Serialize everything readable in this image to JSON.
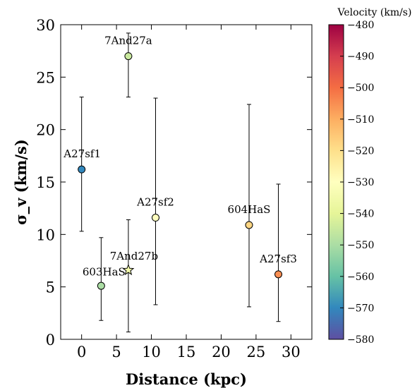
{
  "chart_data": {
    "type": "scatter",
    "xlabel": "Distance (kpc)",
    "ylabel": "σ_v (km/s)",
    "xlim": [
      -3,
      33
    ],
    "ylim": [
      0,
      30
    ],
    "xticks": [
      0,
      5,
      10,
      15,
      20,
      25,
      30
    ],
    "yticks": [
      0,
      5,
      10,
      15,
      20,
      25,
      30
    ],
    "grid": false,
    "points": [
      {
        "label": "A27sf1",
        "x": 0.0,
        "y": 16.2,
        "yerr_low": 10.3,
        "yerr_high": 23.1,
        "velocity": -570,
        "marker": "circle"
      },
      {
        "label": "7And27a",
        "x": 6.7,
        "y": 27.0,
        "yerr_low": 23.1,
        "yerr_high": 29.2,
        "velocity": -545,
        "marker": "circle"
      },
      {
        "label": "603HaS",
        "x": 2.8,
        "y": 5.1,
        "yerr_low": 1.8,
        "yerr_high": 9.7,
        "velocity": -550,
        "marker": "circle"
      },
      {
        "label": "7And27b",
        "x": 6.7,
        "y": 6.6,
        "yerr_low": 0.7,
        "yerr_high": 11.4,
        "velocity": -535,
        "marker": "star"
      },
      {
        "label": "A27sf2",
        "x": 10.6,
        "y": 11.6,
        "yerr_low": 3.3,
        "yerr_high": 23.0,
        "velocity": -530,
        "marker": "circle"
      },
      {
        "label": "604HaS",
        "x": 24.0,
        "y": 10.9,
        "yerr_low": 3.1,
        "yerr_high": 22.4,
        "velocity": -518,
        "marker": "circle"
      },
      {
        "label": "A27sf3",
        "x": 28.2,
        "y": 6.2,
        "yerr_low": 1.7,
        "yerr_high": 14.8,
        "velocity": -505,
        "marker": "circle"
      }
    ],
    "colorbar": {
      "title": "Velocity (km/s)",
      "min": -580,
      "max": -480,
      "ticks": [
        -480,
        -490,
        -500,
        -510,
        -520,
        -530,
        -540,
        -550,
        -560,
        -570,
        -580
      ],
      "colormap": [
        "#5e4fa2",
        "#3288bd",
        "#66c2a5",
        "#abdda4",
        "#e6f598",
        "#ffffbf",
        "#fee08b",
        "#fdae61",
        "#f46d43",
        "#d53e4f",
        "#9e0142"
      ]
    }
  }
}
